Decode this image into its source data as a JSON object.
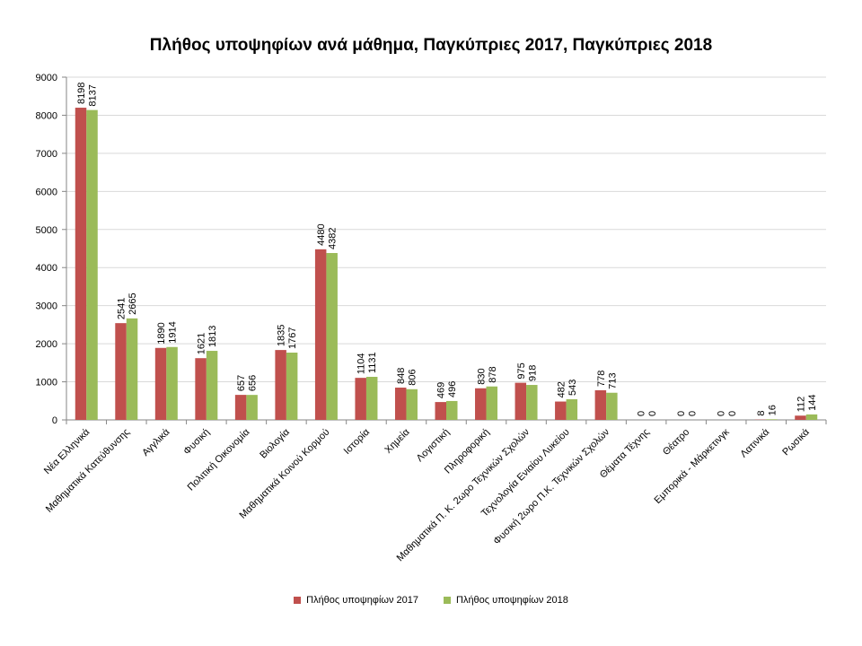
{
  "chart_data": {
    "type": "bar",
    "title": "Πλήθος υποψηφίων ανά μάθημα, Παγκύπριες 2017, Παγκύπριες 2018",
    "categories": [
      "Νέα Ελληνικά",
      "Μαθηματικά Κατεύθυνσης",
      "Αγγλικά",
      "Φυσική",
      "Πολιτική Οικονομία",
      "Βιολογία",
      "Μαθηματικά Κοινού Κορμού",
      "Ιστορία",
      "Χημεία",
      "Λογιστική",
      "Πληροφορική",
      "Μαθηματικά Π. Κ. 2ωρο Τεχνικών Σχολών",
      "Τεχνολογία Ενιαίου Λυκείου",
      "Φυσική 2ωρο Π.Κ. Τεχνικών Σχολών",
      "Θέματα Τέχνης",
      "Θέατρο",
      "Εμπορικά - Μάρκετινγκ",
      "Λατινικά",
      "Ρωσικά"
    ],
    "series": [
      {
        "name": "Πλήθος υποψηφίων 2017",
        "color": "#C0504D",
        "values": [
          8198,
          2541,
          1890,
          1621,
          657,
          1835,
          4480,
          1104,
          848,
          469,
          830,
          975,
          482,
          778,
          0,
          0,
          0,
          8,
          112
        ]
      },
      {
        "name": "Πλήθος υποψηφίων 2018",
        "color": "#9BBB59",
        "values": [
          8137,
          2665,
          1914,
          1813,
          656,
          1767,
          4382,
          1131,
          806,
          496,
          878,
          918,
          543,
          713,
          0,
          0,
          0,
          16,
          144
        ]
      }
    ],
    "ylim": [
      0,
      9000
    ],
    "yticks": [
      0,
      1000,
      2000,
      3000,
      4000,
      5000,
      6000,
      7000,
      8000,
      9000
    ],
    "grid": true,
    "legend_position": "bottom",
    "axis_color": "#868686",
    "grid_color": "#D9D9D9"
  }
}
